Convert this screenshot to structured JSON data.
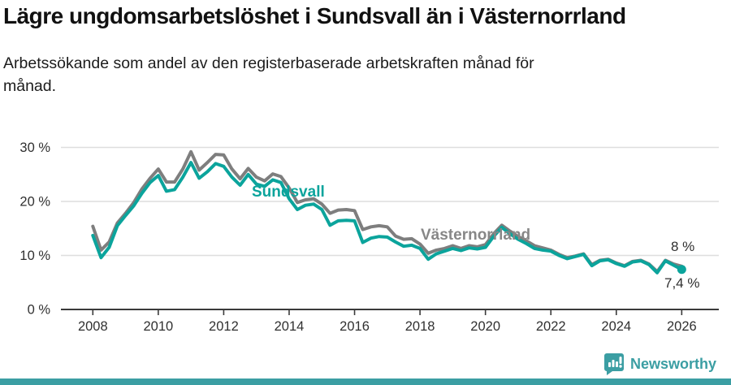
{
  "header": {
    "title": "Lägre ungdomsarbetslöshet i Sundsvall än i Västernorrland",
    "subtitle": "Arbetssökande som andel av den registerbaserade arbetskraften månad för månad."
  },
  "chart_data": {
    "type": "line",
    "title": "Lägre ungdomsarbetslöshet i Sundsvall än i Västernorrland",
    "xlabel": "",
    "ylabel": "",
    "x_start": 2008,
    "x_step": 0.25,
    "xlim": [
      2007.0,
      2027.1
    ],
    "ylim": [
      0,
      33
    ],
    "grid": "horizontal",
    "legend_position": "inline-labels",
    "x_ticks": [
      2008,
      2010,
      2012,
      2014,
      2016,
      2018,
      2020,
      2022,
      2024,
      2026
    ],
    "y_ticks": [
      {
        "value": 0,
        "label": "0 %"
      },
      {
        "value": 10,
        "label": "10 %"
      },
      {
        "value": 20,
        "label": "20 %"
      },
      {
        "value": 30,
        "label": "30 %"
      }
    ],
    "series": [
      {
        "name": "Västernorrland",
        "color": "#7e7e7e",
        "values": [
          15.4,
          11.0,
          12.5,
          16.0,
          17.8,
          19.8,
          22.3,
          24.3,
          26.0,
          23.6,
          23.6,
          26.0,
          29.2,
          25.8,
          27.2,
          28.7,
          28.6,
          26.0,
          24.2,
          26.1,
          24.5,
          23.8,
          25.1,
          24.6,
          22.5,
          19.8,
          20.3,
          20.5,
          19.5,
          17.8,
          18.4,
          18.5,
          18.3,
          14.8,
          15.3,
          15.5,
          15.3,
          13.6,
          13.0,
          13.1,
          12.1,
          10.4,
          11.0,
          11.3,
          11.8,
          11.3,
          11.8,
          11.6,
          12.0,
          14.0,
          15.6,
          14.5,
          13.5,
          12.7,
          11.8,
          11.4,
          11.0,
          10.2,
          9.6,
          9.9,
          10.3,
          8.3,
          9.1,
          9.3,
          8.6,
          8.1,
          8.9,
          9.1,
          8.4,
          7.0,
          9.1,
          8.4,
          8.0
        ]
      },
      {
        "name": "Sundsvall",
        "color": "#0ba49c",
        "values": [
          13.7,
          9.6,
          11.5,
          15.5,
          17.4,
          19.2,
          21.5,
          23.5,
          24.8,
          21.9,
          22.2,
          24.5,
          27.2,
          24.3,
          25.5,
          27.0,
          26.5,
          24.5,
          23.0,
          25.0,
          23.2,
          22.8,
          24.0,
          23.5,
          20.5,
          18.5,
          19.3,
          19.5,
          18.5,
          15.6,
          16.4,
          16.5,
          16.4,
          12.4,
          13.2,
          13.5,
          13.4,
          12.5,
          11.7,
          11.9,
          11.3,
          9.3,
          10.3,
          10.8,
          11.3,
          10.9,
          11.4,
          11.2,
          11.5,
          13.5,
          15.2,
          14.0,
          13.0,
          12.2,
          11.3,
          11.0,
          10.8,
          10.0,
          9.4,
          9.8,
          10.2,
          8.1,
          9.0,
          9.2,
          8.5,
          8.0,
          8.8,
          9.0,
          8.3,
          6.8,
          9.0,
          8.2,
          7.4
        ]
      }
    ],
    "end_labels": {
      "vasternorrland": "8 %",
      "sundsvall": "7,4 %"
    },
    "end_dot": {
      "x": 2026.0,
      "value": 7.4,
      "color": "#0ba49c"
    }
  },
  "footer": {
    "brand": "Newsworthy",
    "brand_color": "#3b9ea3"
  }
}
